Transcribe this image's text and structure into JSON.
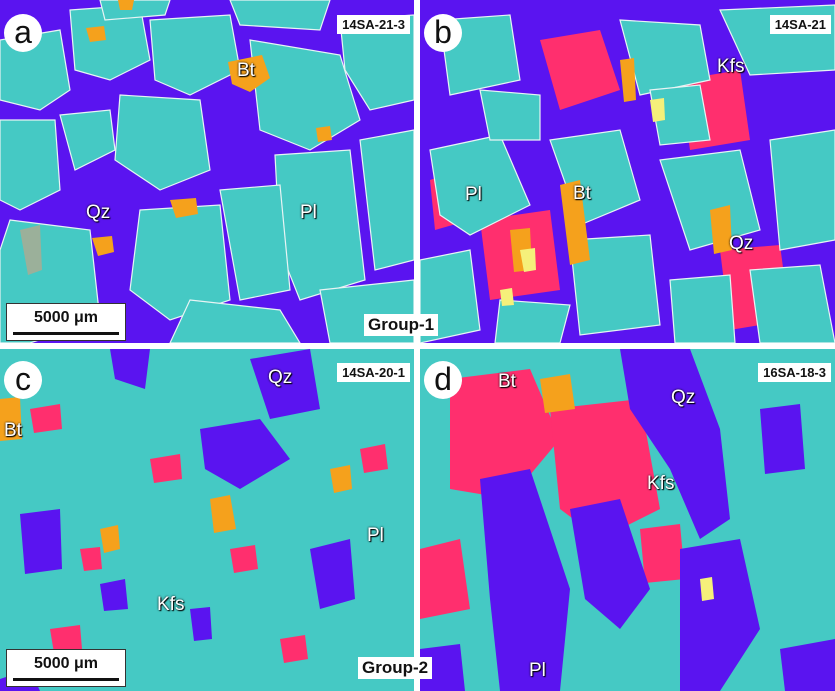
{
  "panels": [
    {
      "letter": "a",
      "sample": "14SA-21-3",
      "minerals": [
        "Bt",
        "Qz",
        "Pl"
      ],
      "scale": "5000 μm"
    },
    {
      "letter": "b",
      "sample": "14SA-21",
      "minerals": [
        "Kfs",
        "Pl",
        "Bt",
        "Qz"
      ]
    },
    {
      "letter": "c",
      "sample": "14SA-20-1",
      "minerals": [
        "Qz",
        "Bt",
        "Pl",
        "Kfs"
      ],
      "scale": "5000 μm"
    },
    {
      "letter": "d",
      "sample": "16SA-18-3",
      "minerals": [
        "Bt",
        "Qz",
        "Kfs",
        "Pl"
      ]
    }
  ],
  "groups": [
    "Group-1",
    "Group-2"
  ],
  "colors": {
    "plagioclase": "#45c9c4",
    "quartz": "#5a14f0",
    "k_feldspar": "#ff2f6e",
    "biotite": "#f5a11c",
    "accent_yellow": "#f5f07a"
  }
}
